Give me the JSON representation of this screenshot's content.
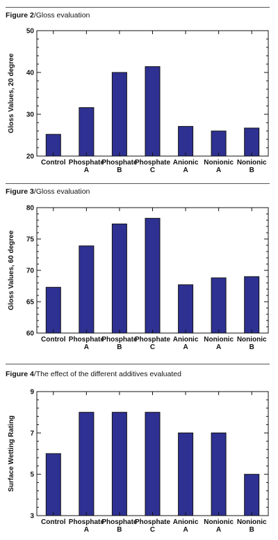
{
  "figures": [
    {
      "caption_number": "Figure 2",
      "caption_text": "/Gloss evaluation",
      "chart_data": {
        "type": "bar",
        "categories": [
          [
            "Control"
          ],
          [
            "Phosphate",
            "A"
          ],
          [
            "Phosphate",
            "B"
          ],
          [
            "Phosphate",
            "C"
          ],
          [
            "Anionic",
            "A"
          ],
          [
            "Nonionic",
            "A"
          ],
          [
            "Nonionic",
            "B"
          ]
        ],
        "values": [
          25.2,
          31.6,
          40.0,
          41.4,
          27.1,
          26.0,
          26.7
        ],
        "ylabel": "Gloss Values, 20 degree",
        "ylim": [
          20,
          50
        ],
        "yticks": [
          20,
          30,
          40,
          50
        ],
        "bar_color": "#2e3192",
        "grid": false
      }
    },
    {
      "caption_number": "Figure 3",
      "caption_text": "/Gloss evaluation",
      "chart_data": {
        "type": "bar",
        "categories": [
          [
            "Control"
          ],
          [
            "Phosphate",
            "A"
          ],
          [
            "Phosphate",
            "B"
          ],
          [
            "Phosphate",
            "C"
          ],
          [
            "Anionic",
            "A"
          ],
          [
            "Nonionic",
            "A"
          ],
          [
            "Nonionic",
            "B"
          ]
        ],
        "values": [
          67.3,
          73.9,
          77.4,
          78.3,
          67.7,
          68.8,
          69.0
        ],
        "ylabel": "Gloss Values, 60 degree",
        "ylim": [
          60,
          80
        ],
        "yticks": [
          60,
          65,
          70,
          75,
          80
        ],
        "bar_color": "#2e3192",
        "grid": false
      }
    },
    {
      "caption_number": "Figure 4",
      "caption_text": "/The effect of the different additives evaluated",
      "chart_data": {
        "type": "bar",
        "categories": [
          [
            "Control"
          ],
          [
            "Phosphate",
            "A"
          ],
          [
            "Phosphate",
            "B"
          ],
          [
            "Phosphate",
            "C"
          ],
          [
            "Anionic",
            "A"
          ],
          [
            "Nonionic",
            "A"
          ],
          [
            "Nonionic",
            "B"
          ]
        ],
        "values": [
          6,
          8,
          8,
          8,
          7,
          7,
          5
        ],
        "ylabel": "Surface Wetting Rating",
        "ylim": [
          3,
          9
        ],
        "yticks": [
          3,
          5,
          7,
          9
        ],
        "bar_color": "#2e3192",
        "grid": false
      }
    }
  ]
}
